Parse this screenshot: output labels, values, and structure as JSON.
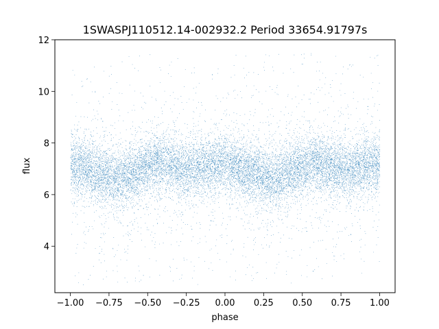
{
  "chart_data": {
    "type": "scatter",
    "title": "1SWASPJ110512.14-002932.2 Period 33654.91797s",
    "xlabel": "phase",
    "ylabel": "flux",
    "xlim": [
      -1.1,
      1.1
    ],
    "ylim": [
      2.2,
      12.0
    ],
    "xticks": [
      -1.0,
      -0.75,
      -0.5,
      -0.25,
      0.0,
      0.25,
      0.5,
      0.75,
      1.0
    ],
    "xtick_labels": [
      "−1.00",
      "−0.75",
      "−0.50",
      "−0.25",
      "0.00",
      "0.25",
      "0.50",
      "0.75",
      "1.00"
    ],
    "yticks": [
      4,
      6,
      8,
      10,
      12
    ],
    "ytick_labels": [
      "4",
      "6",
      "8",
      "10",
      "12"
    ],
    "grid": false,
    "series": [
      {
        "color": "#1f77b4",
        "marker": "point",
        "model": "phase-folded light curve, mean flux vs phase",
        "x": [
          -1.0,
          -0.75,
          -0.7,
          -0.5,
          -0.45,
          -0.25,
          0.0,
          0.25,
          0.3,
          0.5,
          0.55,
          0.75,
          1.0
        ],
        "y": [
          7.2,
          6.7,
          6.55,
          7.1,
          7.25,
          7.0,
          7.2,
          6.7,
          6.55,
          7.1,
          7.25,
          7.0,
          7.2
        ],
        "core_spread": 0.55,
        "range": [
          2.5,
          11.5
        ]
      }
    ]
  }
}
